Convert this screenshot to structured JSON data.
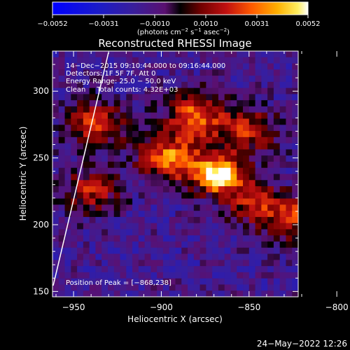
{
  "colorbar": {
    "ticks": [
      "−0.0052",
      "−0.0031",
      "−0.0010",
      "0.0010",
      "0.0031",
      "0.0052"
    ],
    "units_prefix": "(photons cm",
    "units_sup1": "−2",
    "units_mid": " s",
    "units_sup2": "−1",
    "units_mid2": " asec",
    "units_sup3": "−2",
    "units_suffix": ")"
  },
  "image": {
    "title": "Reconstructed RHESSI Image",
    "info_lines": [
      "14−Dec−2015 09:10:44.000 to 09:16:44.000",
      "Detectors: 1F 5F 7F, Att 0",
      "Energy Range: 25.0 − 50.0 keV",
      "Clean     Total counts: 4.32E+03"
    ],
    "peak_label": "Position of Peak = [−868,238]",
    "peak": {
      "x": -868,
      "y": 238
    }
  },
  "chart_data": {
    "type": "heatmap",
    "title": "Reconstructed RHESSI Image",
    "xlabel": "Heliocentric X (arcsec)",
    "ylabel": "Heliocentric Y (arcsec)",
    "xlim": [
      -962,
      -822
    ],
    "ylim": [
      146,
      330
    ],
    "x_ticks": [
      -950,
      -900,
      -850,
      -800
    ],
    "x_tick_labels": [
      "−950",
      "−900",
      "−850",
      "−800"
    ],
    "y_ticks": [
      150,
      200,
      250,
      300
    ],
    "y_tick_labels": [
      "150",
      "200",
      "250",
      "300"
    ],
    "colorbar_range": [
      -0.0052,
      0.0052
    ],
    "sources": [
      {
        "x": -868,
        "y": 238,
        "peak": 0.0052
      },
      {
        "x": -895,
        "y": 250,
        "peak": 0.0032
      },
      {
        "x": -880,
        "y": 282,
        "peak": 0.0028
      },
      {
        "x": -850,
        "y": 270,
        "peak": 0.0018
      },
      {
        "x": -937,
        "y": 275,
        "peak": 0.0022
      },
      {
        "x": -940,
        "y": 225,
        "peak": 0.0016
      },
      {
        "x": -825,
        "y": 205,
        "peak": 0.0018
      },
      {
        "x": -848,
        "y": 218,
        "peak": 0.0014
      }
    ]
  },
  "footer": {
    "timestamp": "24−May−2022 12:26"
  }
}
